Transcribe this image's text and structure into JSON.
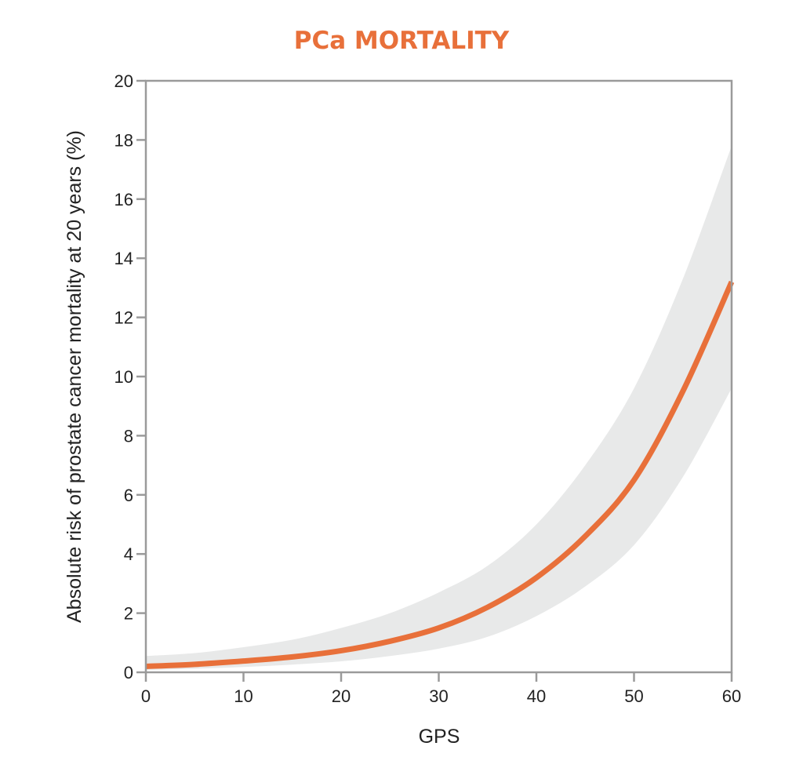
{
  "chart_data": {
    "type": "line",
    "title": "PCa MORTALITY",
    "xlabel": "GPS",
    "ylabel": "Absolute risk of prostate cancer mortality at 20 years (%)",
    "xlim": [
      0,
      60
    ],
    "ylim": [
      0,
      20
    ],
    "xticks": [
      0,
      10,
      20,
      30,
      40,
      50,
      60
    ],
    "yticks": [
      0,
      2,
      4,
      6,
      8,
      10,
      12,
      14,
      16,
      18,
      20
    ],
    "grid": false,
    "legend": "none",
    "colors": {
      "title": "#E8703A",
      "line": "#E8703A",
      "band": "#E8E9E9",
      "axis": "#9A9A9A"
    },
    "series": [
      {
        "x": [
          0,
          5,
          10,
          15,
          20,
          25,
          30,
          35,
          40,
          45,
          50,
          55,
          60
        ],
        "values": [
          0.2,
          0.27,
          0.38,
          0.52,
          0.73,
          1.05,
          1.5,
          2.2,
          3.2,
          4.6,
          6.5,
          9.5,
          13.2
        ],
        "lower": [
          0.08,
          0.12,
          0.18,
          0.26,
          0.37,
          0.55,
          0.8,
          1.2,
          1.9,
          2.9,
          4.3,
          6.6,
          9.6
        ],
        "upper": [
          0.55,
          0.65,
          0.85,
          1.1,
          1.5,
          2.0,
          2.7,
          3.6,
          5.0,
          7.0,
          9.6,
          13.3,
          17.8
        ]
      }
    ]
  }
}
